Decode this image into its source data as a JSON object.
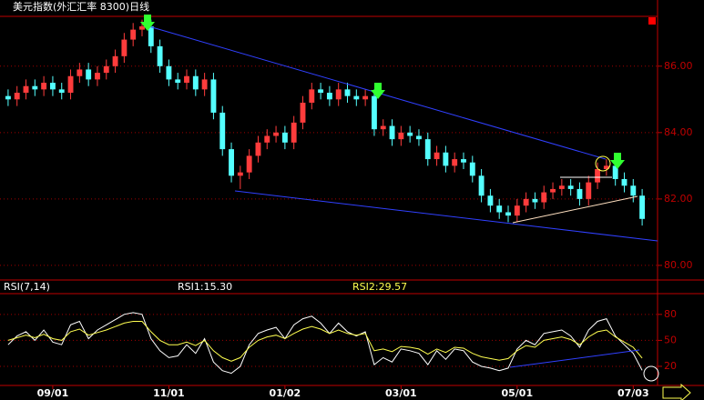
{
  "chart_data": [
    {
      "type": "candlestick",
      "title": "美元指数(外汇汇率 8300)日线",
      "categories": [
        null,
        null,
        null,
        null,
        null,
        "09/01",
        null,
        null,
        null,
        null,
        null,
        null,
        null,
        null,
        null,
        null,
        null,
        null,
        "11/01",
        null,
        null,
        null,
        null,
        null,
        null,
        null,
        null,
        null,
        null,
        null,
        null,
        "01/02",
        null,
        null,
        null,
        null,
        null,
        null,
        null,
        null,
        null,
        null,
        null,
        null,
        "03/01",
        null,
        null,
        null,
        null,
        null,
        null,
        null,
        null,
        null,
        null,
        null,
        null,
        "05/01",
        null,
        null,
        null,
        null,
        null,
        null,
        null,
        null,
        null,
        null,
        null,
        null,
        "07/03",
        null
      ],
      "open": [
        85.1,
        85.0,
        85.2,
        85.4,
        85.3,
        85.5,
        85.3,
        85.2,
        85.7,
        85.9,
        85.6,
        85.8,
        86.0,
        86.3,
        86.8,
        87.1,
        87.2,
        86.6,
        86.0,
        85.6,
        85.5,
        85.7,
        85.3,
        85.6,
        84.6,
        83.5,
        82.7,
        82.8,
        83.3,
        83.7,
        83.9,
        84.0,
        83.7,
        84.3,
        84.9,
        85.3,
        85.2,
        85.0,
        85.3,
        85.1,
        85.0,
        85.1,
        84.1,
        84.2,
        83.8,
        84.0,
        83.9,
        83.8,
        83.2,
        83.4,
        83.0,
        83.2,
        83.1,
        82.7,
        82.1,
        81.8,
        81.6,
        81.5,
        81.8,
        82.0,
        81.9,
        82.2,
        82.3,
        82.4,
        82.3,
        82.0,
        82.5,
        82.9,
        83.0,
        82.6,
        82.4,
        82.1
      ],
      "high": [
        85.3,
        85.4,
        85.6,
        85.6,
        85.7,
        85.7,
        85.5,
        85.9,
        86.1,
        86.1,
        86.0,
        86.2,
        86.5,
        87.0,
        87.3,
        87.4,
        87.4,
        86.8,
        86.2,
        85.8,
        85.9,
        85.9,
        85.8,
        85.8,
        84.8,
        83.7,
        83.0,
        83.5,
        83.9,
        84.1,
        84.2,
        84.2,
        84.5,
        85.1,
        85.5,
        85.5,
        85.4,
        85.5,
        85.5,
        85.3,
        85.3,
        85.3,
        84.4,
        84.4,
        84.2,
        84.2,
        84.1,
        84.0,
        83.6,
        83.6,
        83.4,
        83.4,
        83.3,
        82.9,
        82.3,
        82.0,
        81.8,
        82.0,
        82.2,
        82.2,
        82.4,
        82.5,
        82.6,
        82.6,
        82.5,
        82.7,
        83.1,
        83.2,
        83.2,
        82.8,
        82.6,
        82.3
      ],
      "low": [
        84.8,
        84.8,
        85.0,
        85.1,
        85.1,
        85.1,
        85.0,
        85.0,
        85.5,
        85.4,
        85.4,
        85.6,
        85.8,
        86.1,
        86.6,
        86.9,
        86.4,
        85.8,
        85.4,
        85.3,
        85.3,
        85.1,
        85.1,
        84.4,
        83.3,
        82.5,
        82.3,
        82.6,
        83.1,
        83.5,
        83.7,
        83.5,
        83.5,
        84.1,
        84.7,
        85.0,
        84.8,
        84.8,
        84.9,
        84.8,
        84.8,
        83.9,
        83.9,
        83.6,
        83.6,
        83.7,
        83.6,
        83.0,
        83.0,
        82.8,
        82.8,
        82.9,
        82.5,
        81.9,
        81.6,
        81.4,
        81.3,
        81.3,
        81.6,
        81.7,
        81.7,
        82.0,
        82.1,
        82.1,
        81.8,
        81.8,
        82.3,
        82.7,
        82.4,
        82.2,
        81.9,
        81.2
      ],
      "close": [
        85.0,
        85.2,
        85.4,
        85.3,
        85.5,
        85.3,
        85.2,
        85.7,
        85.9,
        85.6,
        85.8,
        86.0,
        86.3,
        86.8,
        87.1,
        87.2,
        86.6,
        86.0,
        85.6,
        85.5,
        85.7,
        85.3,
        85.6,
        84.6,
        83.5,
        82.7,
        82.8,
        83.3,
        83.7,
        83.9,
        84.0,
        83.7,
        84.3,
        84.9,
        85.3,
        85.2,
        85.0,
        85.3,
        85.1,
        85.0,
        85.1,
        84.1,
        84.2,
        83.8,
        84.0,
        83.9,
        83.8,
        83.2,
        83.4,
        83.0,
        83.2,
        83.1,
        82.7,
        82.1,
        81.8,
        81.6,
        81.5,
        81.8,
        82.0,
        81.9,
        82.2,
        82.3,
        82.4,
        82.3,
        82.0,
        82.5,
        82.9,
        83.0,
        82.6,
        82.4,
        82.1,
        81.4
      ],
      "up_color": "#ff3c3c",
      "down_color": "#54ffff",
      "ylim": [
        79.56,
        87.5
      ],
      "yticks": [
        {
          "value": 80,
          "label": "80.00"
        },
        {
          "value": 82,
          "label": "82.00"
        },
        {
          "value": 84,
          "label": "84.00"
        },
        {
          "value": 86,
          "label": "86.00"
        }
      ],
      "grid": true
    },
    {
      "type": "line",
      "title": "RSI(7,14)",
      "series": [
        {
          "label": "RSI1:15.30",
          "color": "#ffffff",
          "values": [
            45,
            55,
            60,
            50,
            62,
            48,
            45,
            68,
            72,
            52,
            62,
            68,
            74,
            80,
            82,
            80,
            52,
            38,
            30,
            32,
            45,
            35,
            52,
            25,
            15,
            12,
            20,
            45,
            58,
            62,
            65,
            52,
            68,
            75,
            78,
            70,
            58,
            70,
            60,
            55,
            60,
            22,
            30,
            25,
            40,
            38,
            35,
            22,
            38,
            28,
            40,
            38,
            25,
            20,
            18,
            15,
            18,
            40,
            50,
            45,
            58,
            60,
            62,
            55,
            42,
            62,
            72,
            75,
            55,
            45,
            35,
            15.3
          ]
        },
        {
          "label": "RSI2:29.57",
          "color": "#ffff50",
          "values": [
            50,
            53,
            56,
            53,
            57,
            52,
            50,
            60,
            63,
            56,
            59,
            62,
            66,
            70,
            72,
            72,
            60,
            50,
            45,
            45,
            48,
            44,
            50,
            38,
            30,
            26,
            30,
            42,
            50,
            54,
            56,
            52,
            58,
            63,
            66,
            63,
            58,
            62,
            58,
            56,
            58,
            38,
            40,
            37,
            43,
            42,
            40,
            34,
            40,
            36,
            42,
            41,
            35,
            31,
            29,
            27,
            29,
            38,
            44,
            42,
            50,
            52,
            54,
            51,
            45,
            54,
            60,
            62,
            54,
            48,
            42,
            29.57
          ]
        }
      ],
      "ylim": [
        0,
        104
      ],
      "yticks": [
        20,
        50,
        80
      ],
      "grid": true
    }
  ]
}
